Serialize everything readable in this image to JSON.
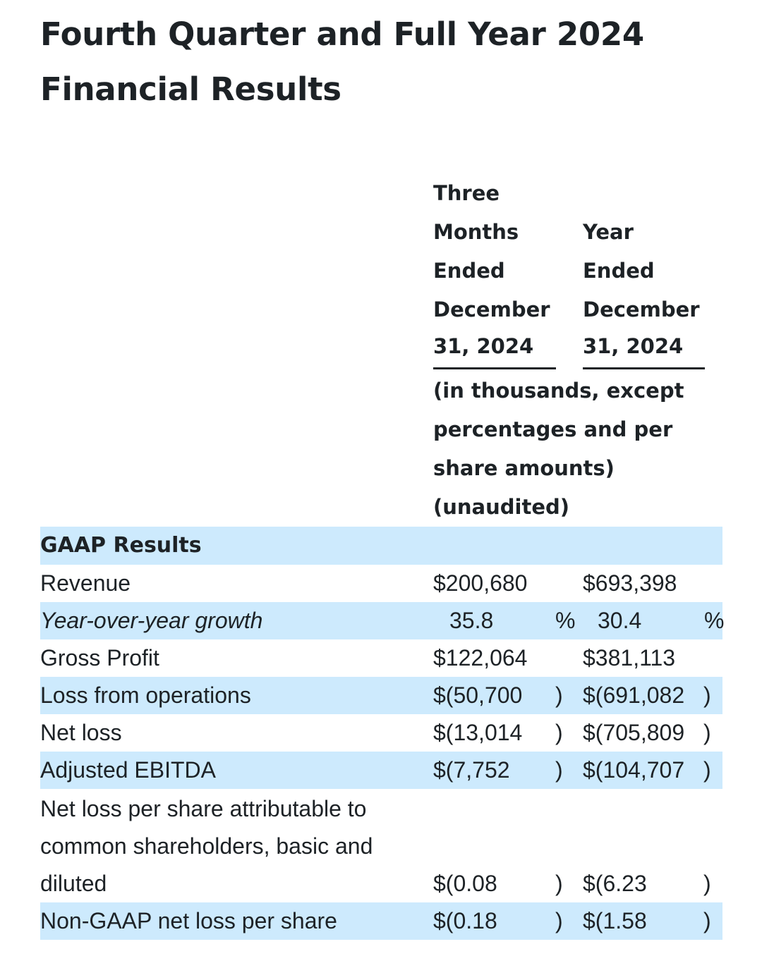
{
  "title": {
    "line1": "Fourth Quarter and Full Year 2024",
    "line2": "Financial Results"
  },
  "columns": [
    {
      "lines": [
        "Three",
        "Months",
        "Ended",
        "December",
        "31, 2024"
      ]
    },
    {
      "lines": [
        "Year",
        "Ended",
        "December",
        "31, 2024"
      ]
    }
  ],
  "units_note": [
    "(in thousands, except",
    "percentages and per",
    "share amounts)",
    "(unaudited)"
  ],
  "section_header": "GAAP Results",
  "rows": [
    {
      "label": "Revenue",
      "q4": "$200,680",
      "q4_suffix": "",
      "fy": "$693,398",
      "fy_suffix": ""
    },
    {
      "label": "Year-over-year growth",
      "q4": "35.8",
      "q4_suffix": "%",
      "fy": "30.4",
      "fy_suffix": "%"
    },
    {
      "label": "Gross Profit",
      "q4": "$122,064",
      "q4_suffix": "",
      "fy": "$381,113",
      "fy_suffix": ""
    },
    {
      "label": "Loss from operations",
      "q4": "$(50,700",
      "q4_suffix": ")",
      "fy": "$(691,082",
      "fy_suffix": ")"
    },
    {
      "label": "Net loss",
      "q4": "$(13,014",
      "q4_suffix": ")",
      "fy": "$(705,809",
      "fy_suffix": ")"
    },
    {
      "label": "Adjusted EBITDA",
      "q4": "$(7,752",
      "q4_suffix": ")",
      "fy": "$(104,707",
      "fy_suffix": ")"
    },
    {
      "label_lines": [
        "Net loss per share attributable to",
        "common shareholders, basic and",
        "diluted"
      ],
      "q4": "$(0.08",
      "q4_suffix": ")",
      "fy": "$(6.23",
      "fy_suffix": ")"
    },
    {
      "label": "Non-GAAP net loss per share",
      "q4": "$(0.18",
      "q4_suffix": ")",
      "fy": "$(1.58",
      "fy_suffix": ")"
    }
  ],
  "colors": {
    "row_shade": "#cdeafd",
    "text": "#1d2226"
  }
}
